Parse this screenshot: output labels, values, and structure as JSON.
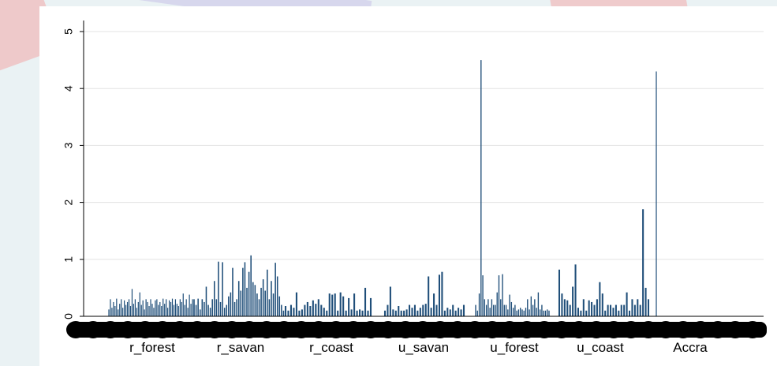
{
  "chart_data": {
    "type": "bar",
    "title": "",
    "xlabel": "",
    "ylabel": "",
    "ylim": [
      0,
      5
    ],
    "yticks": [
      "0",
      "1",
      "2",
      "3",
      "4",
      "5"
    ],
    "grid": true,
    "group_labels": [
      "r_forest",
      "r_savan",
      "r_coast",
      "u_savan",
      "u_forest",
      "u_coast",
      "Accra"
    ],
    "bar_color": "#1f4e79",
    "groups": [
      {
        "name": "r_forest",
        "values": [
          0.12,
          0.3,
          0.15,
          0.25,
          0.18,
          0.31,
          0.12,
          0.22,
          0.3,
          0.15,
          0.28,
          0.2,
          0.25,
          0.3,
          0.18,
          0.48,
          0.22,
          0.3,
          0.15,
          0.25,
          0.42,
          0.2,
          0.28,
          0.12,
          0.3,
          0.25,
          0.18,
          0.3,
          0.22,
          0.15,
          0.28,
          0.3,
          0.2,
          0.25,
          0.18,
          0.31,
          0.22,
          0.3,
          0.15,
          0.28,
          0.25,
          0.31,
          0.2,
          0.3,
          0.22,
          0.18,
          0.3,
          0.25,
          0.4,
          0.2,
          0.3,
          0.15,
          0.38,
          0.22,
          0.3,
          0.2
        ]
      },
      {
        "name": "r_savan",
        "values": [
          0.3,
          0.2,
          0.31,
          0.12,
          0.3,
          0.25,
          0.52,
          0.2,
          0.15,
          0.3,
          0.62,
          0.3,
          0.96,
          0.25,
          0.95,
          0.15,
          0.2,
          0.35,
          0.42,
          0.85,
          0.25,
          0.3,
          0.62,
          0.45,
          0.85,
          0.95,
          0.5,
          0.78,
          1.07,
          0.6,
          0.55,
          0.4,
          0.3,
          0.5,
          0.65,
          0.45,
          0.82,
          0.3,
          0.62,
          0.4,
          0.94,
          0.7,
          0.35,
          0.2,
          0.1,
          0.15
        ]
      },
      {
        "name": "r_coast",
        "values": [
          0.18,
          0.1,
          0.2,
          0.15,
          0.42,
          0.1,
          0.12,
          0.2,
          0.25,
          0.18,
          0.28,
          0.22,
          0.3,
          0.2,
          0.15,
          0.1,
          0.4,
          0.38,
          0.4,
          0.1,
          0.42,
          0.35,
          0.1,
          0.32,
          0.12,
          0.4,
          0.1,
          0.12,
          0.1,
          0.5,
          0.1,
          0.32
        ]
      },
      {
        "name": "u_savan",
        "values": [
          0.1,
          0.2,
          0.52,
          0.12,
          0.1,
          0.18,
          0.1,
          0.1,
          0.12,
          0.2,
          0.15,
          0.2,
          0.1,
          0.15,
          0.2,
          0.22,
          0.7,
          0.15,
          0.4,
          0.2,
          0.73,
          0.78,
          0.1,
          0.15,
          0.12,
          0.2,
          0.1,
          0.15,
          0.12,
          0.2
        ]
      },
      {
        "name": "u_forest",
        "values": [
          0.2,
          0.1,
          0.4,
          4.5,
          0.72,
          0.3,
          0.2,
          0.3,
          0.15,
          0.3,
          0.2,
          0.2,
          0.42,
          0.72,
          0.3,
          0.74,
          0.2,
          0.2,
          0.12,
          0.38,
          0.25,
          0.15,
          0.2,
          0.1,
          0.12,
          0.15,
          0.12,
          0.1,
          0.15,
          0.3,
          0.12,
          0.35,
          0.2,
          0.3,
          0.15,
          0.42,
          0.12,
          0.2,
          0.1,
          0.1,
          0.12,
          0.1
        ]
      },
      {
        "name": "u_coast",
        "values": [
          0.82,
          0.4,
          0.3,
          0.28,
          0.2,
          0.52,
          0.91,
          0.15,
          0.1,
          0.3,
          0.1,
          0.28,
          0.25,
          0.2,
          0.3,
          0.6,
          0.4,
          0.1,
          0.2,
          0.2,
          0.15,
          0.2,
          0.1,
          0.2,
          0.2,
          0.42,
          0.1,
          0.3,
          0.2,
          0.3,
          0.2,
          1.88,
          0.5,
          0.3
        ]
      },
      {
        "name": "Accra",
        "values": [
          4.3
        ]
      }
    ]
  }
}
